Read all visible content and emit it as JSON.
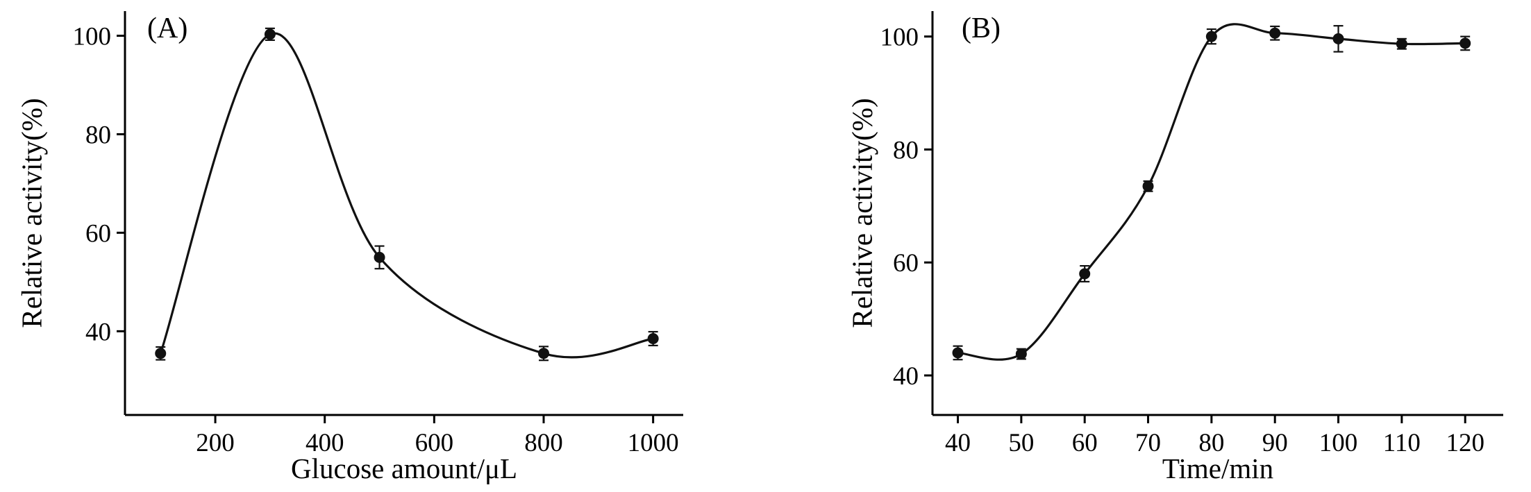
{
  "figure": {
    "background": "#ffffff",
    "axis_color": "#000000",
    "line_color": "#111111"
  },
  "chart_data": [
    {
      "type": "line",
      "panel_label": "(A)",
      "title": "",
      "xlabel": "Glucose amount/μL",
      "ylabel": "Relative activity(%)",
      "marker": "filled-circle",
      "error_bars": true,
      "grid": false,
      "legend": "none",
      "x": [
        100,
        300,
        500,
        800,
        1000
      ],
      "y": [
        35.5,
        100.3,
        55,
        35.5,
        38.5
      ],
      "yerr": [
        1.3,
        1.2,
        2.3,
        1.4,
        1.4
      ],
      "xlim": [
        35,
        1055
      ],
      "ylim": [
        23,
        105
      ],
      "xticks": [
        200,
        400,
        600,
        800,
        1000
      ],
      "yticks": [
        40,
        60,
        80,
        100
      ],
      "line_color": "#111111",
      "axis_color": "#000000"
    },
    {
      "type": "line",
      "panel_label": "(B)",
      "title": "",
      "xlabel": "Time/min",
      "ylabel": "Relative activity(%)",
      "marker": "filled-circle",
      "error_bars": true,
      "grid": false,
      "legend": "none",
      "x": [
        40,
        50,
        60,
        70,
        80,
        90,
        100,
        110,
        120
      ],
      "y": [
        44,
        43.8,
        58,
        73.5,
        100,
        100.6,
        99.6,
        98.7,
        98.8
      ],
      "yerr": [
        1.2,
        0.9,
        1.4,
        0.9,
        1.3,
        1.2,
        2.3,
        0.9,
        1.2
      ],
      "xlim": [
        36,
        126
      ],
      "ylim": [
        33,
        104.5
      ],
      "xticks": [
        40,
        50,
        60,
        70,
        80,
        90,
        100,
        110,
        120
      ],
      "yticks": [
        40,
        60,
        80,
        100
      ],
      "line_color": "#111111",
      "axis_color": "#000000"
    }
  ]
}
